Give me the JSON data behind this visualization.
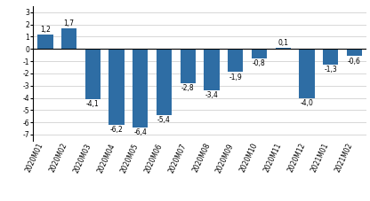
{
  "categories": [
    "2020M01",
    "2020M02",
    "2020M03",
    "2020M04",
    "2020M05",
    "2020M06",
    "2020M07",
    "2020M08",
    "2020M09",
    "2020M10",
    "2020M11",
    "2020M12",
    "2021M01",
    "2021M02"
  ],
  "values": [
    1.2,
    1.7,
    -4.1,
    -6.2,
    -6.4,
    -5.4,
    -2.8,
    -3.4,
    -1.9,
    -0.8,
    0.1,
    -4.0,
    -1.3,
    -0.6
  ],
  "bar_color": "#2E6DA4",
  "ylim": [
    -7.5,
    3.5
  ],
  "yticks": [
    -7,
    -6,
    -5,
    -4,
    -3,
    -2,
    -1,
    0,
    1,
    2,
    3
  ],
  "label_fontsize": 5.5,
  "tick_fontsize": 5.5,
  "background_color": "#ffffff",
  "grid_color": "#c8c8c8"
}
